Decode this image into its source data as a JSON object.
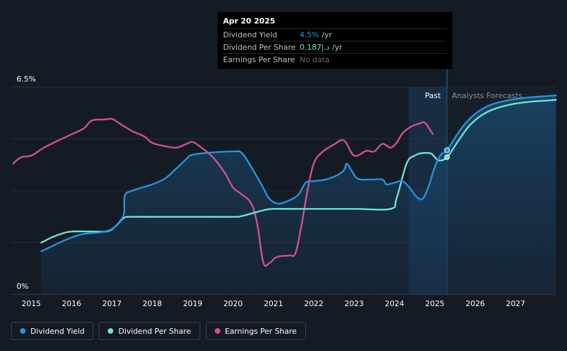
{
  "chart_data": {
    "type": "line",
    "title": "",
    "xlabel": "",
    "ylabel": "",
    "y_ticks": [
      {
        "value": 6.5,
        "label": "6.5%"
      },
      {
        "value": 0,
        "label": "0%"
      }
    ],
    "ylim": [
      0,
      6.5
    ],
    "xlim": [
      2014.5,
      2028.0
    ],
    "x_ticks": [
      "2015",
      "2016",
      "2017",
      "2018",
      "2019",
      "2020",
      "2021",
      "2022",
      "2023",
      "2024",
      "2025",
      "2026",
      "2027"
    ],
    "regions": {
      "past_label": "Past",
      "forecast_label": "Analysts Forecasts",
      "past_band": [
        2024.35,
        2025.3
      ]
    },
    "series": [
      {
        "name": "Dividend Yield",
        "color": "#2394df",
        "points": [
          [
            2015.25,
            1.35
          ],
          [
            2015.5,
            1.5
          ],
          [
            2015.75,
            1.65
          ],
          [
            2016.0,
            1.78
          ],
          [
            2016.25,
            1.88
          ],
          [
            2016.5,
            1.92
          ],
          [
            2016.75,
            1.95
          ],
          [
            2017.0,
            2.05
          ],
          [
            2017.2,
            2.3
          ],
          [
            2017.3,
            2.55
          ],
          [
            2017.32,
            3.1
          ],
          [
            2017.5,
            3.25
          ],
          [
            2017.75,
            3.35
          ],
          [
            2018.0,
            3.45
          ],
          [
            2018.3,
            3.62
          ],
          [
            2018.6,
            3.95
          ],
          [
            2018.85,
            4.25
          ],
          [
            2019.0,
            4.38
          ],
          [
            2019.5,
            4.45
          ],
          [
            2020.0,
            4.48
          ],
          [
            2020.2,
            4.45
          ],
          [
            2020.4,
            4.1
          ],
          [
            2020.7,
            3.45
          ],
          [
            2020.9,
            3.0
          ],
          [
            2021.1,
            2.85
          ],
          [
            2021.3,
            2.9
          ],
          [
            2021.6,
            3.1
          ],
          [
            2021.8,
            3.5
          ],
          [
            2022.0,
            3.55
          ],
          [
            2022.3,
            3.6
          ],
          [
            2022.6,
            3.75
          ],
          [
            2022.75,
            3.9
          ],
          [
            2022.82,
            4.1
          ],
          [
            2022.95,
            3.85
          ],
          [
            2023.1,
            3.62
          ],
          [
            2023.4,
            3.6
          ],
          [
            2023.7,
            3.6
          ],
          [
            2023.8,
            3.45
          ],
          [
            2024.0,
            3.5
          ],
          [
            2024.2,
            3.55
          ],
          [
            2024.4,
            3.3
          ],
          [
            2024.55,
            3.05
          ],
          [
            2024.7,
            3.0
          ],
          [
            2024.85,
            3.4
          ],
          [
            2025.0,
            4.0
          ],
          [
            2025.15,
            4.38
          ],
          [
            2025.3,
            4.52
          ],
          [
            2025.6,
            5.1
          ],
          [
            2025.9,
            5.55
          ],
          [
            2026.3,
            5.9
          ],
          [
            2026.8,
            6.08
          ],
          [
            2027.3,
            6.17
          ],
          [
            2027.8,
            6.22
          ],
          [
            2028.0,
            6.24
          ]
        ]
      },
      {
        "name": "Dividend Per Share",
        "color": "#6ce5d0",
        "points": [
          [
            2015.25,
            1.62
          ],
          [
            2015.5,
            1.78
          ],
          [
            2015.75,
            1.9
          ],
          [
            2016.0,
            1.97
          ],
          [
            2016.5,
            1.97
          ],
          [
            2016.9,
            1.98
          ],
          [
            2017.1,
            2.15
          ],
          [
            2017.3,
            2.4
          ],
          [
            2017.5,
            2.43
          ],
          [
            2018.0,
            2.43
          ],
          [
            2019.0,
            2.43
          ],
          [
            2020.0,
            2.43
          ],
          [
            2020.2,
            2.45
          ],
          [
            2020.5,
            2.55
          ],
          [
            2020.8,
            2.65
          ],
          [
            2021.0,
            2.68
          ],
          [
            2021.5,
            2.68
          ],
          [
            2022.0,
            2.68
          ],
          [
            2023.0,
            2.68
          ],
          [
            2023.9,
            2.68
          ],
          [
            2024.05,
            3.0
          ],
          [
            2024.3,
            4.1
          ],
          [
            2024.5,
            4.35
          ],
          [
            2024.7,
            4.43
          ],
          [
            2024.9,
            4.42
          ],
          [
            2025.0,
            4.3
          ],
          [
            2025.1,
            4.2
          ],
          [
            2025.3,
            4.3
          ],
          [
            2025.6,
            4.85
          ],
          [
            2025.9,
            5.35
          ],
          [
            2026.3,
            5.72
          ],
          [
            2026.8,
            5.93
          ],
          [
            2027.3,
            6.03
          ],
          [
            2027.8,
            6.08
          ],
          [
            2028.0,
            6.1
          ]
        ]
      },
      {
        "name": "Earnings Per Share",
        "color": "#d54f8f",
        "points": [
          [
            2014.55,
            4.1
          ],
          [
            2014.75,
            4.3
          ],
          [
            2015.0,
            4.35
          ],
          [
            2015.25,
            4.55
          ],
          [
            2015.5,
            4.72
          ],
          [
            2015.75,
            4.87
          ],
          [
            2016.0,
            5.02
          ],
          [
            2016.3,
            5.2
          ],
          [
            2016.5,
            5.45
          ],
          [
            2016.8,
            5.48
          ],
          [
            2017.0,
            5.5
          ],
          [
            2017.2,
            5.35
          ],
          [
            2017.5,
            5.12
          ],
          [
            2017.8,
            4.95
          ],
          [
            2018.0,
            4.75
          ],
          [
            2018.3,
            4.65
          ],
          [
            2018.6,
            4.6
          ],
          [
            2018.85,
            4.72
          ],
          [
            2019.0,
            4.78
          ],
          [
            2019.2,
            4.62
          ],
          [
            2019.5,
            4.3
          ],
          [
            2019.8,
            3.8
          ],
          [
            2020.0,
            3.35
          ],
          [
            2020.2,
            3.15
          ],
          [
            2020.45,
            2.85
          ],
          [
            2020.6,
            2.2
          ],
          [
            2020.75,
            1.0
          ],
          [
            2020.9,
            0.98
          ],
          [
            2021.05,
            1.15
          ],
          [
            2021.2,
            1.2
          ],
          [
            2021.4,
            1.22
          ],
          [
            2021.55,
            1.3
          ],
          [
            2021.7,
            2.2
          ],
          [
            2021.85,
            3.3
          ],
          [
            2022.0,
            4.1
          ],
          [
            2022.2,
            4.45
          ],
          [
            2022.5,
            4.7
          ],
          [
            2022.75,
            4.82
          ],
          [
            2023.0,
            4.35
          ],
          [
            2023.3,
            4.5
          ],
          [
            2023.5,
            4.48
          ],
          [
            2023.7,
            4.72
          ],
          [
            2023.9,
            4.6
          ],
          [
            2024.05,
            4.75
          ],
          [
            2024.2,
            5.05
          ],
          [
            2024.4,
            5.25
          ],
          [
            2024.6,
            5.35
          ],
          [
            2024.75,
            5.38
          ],
          [
            2024.9,
            5.12
          ],
          [
            2024.95,
            5.02
          ]
        ]
      }
    ],
    "tooltip": {
      "date": "Apr 20 2025",
      "rows": [
        {
          "key": "Dividend Yield",
          "value": "4.5%",
          "unit": "/yr",
          "color": "#2394df"
        },
        {
          "key": "Dividend Per Share",
          "value": "0.187د.إ",
          "unit": "/yr",
          "color": "#6ce5d0"
        },
        {
          "key": "Earnings Per Share",
          "value": "No data",
          "unit": "",
          "color": "#6b7078"
        }
      ]
    },
    "legend": [
      {
        "label": "Dividend Yield",
        "color": "#2394df"
      },
      {
        "label": "Dividend Per Share",
        "color": "#6ce5d0"
      },
      {
        "label": "Earnings Per Share",
        "color": "#d54f8f"
      }
    ]
  }
}
